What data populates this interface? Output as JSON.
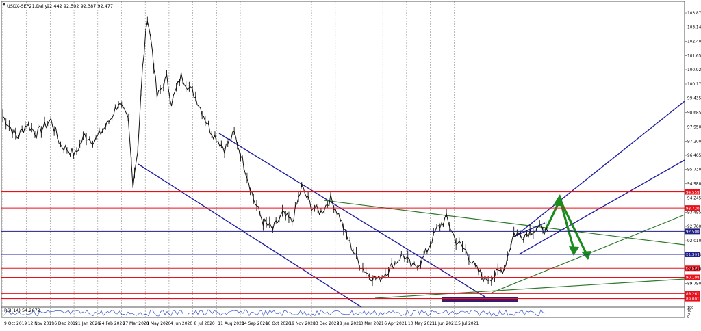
{
  "header": {
    "symbol": "USDX-SEP21,Daily",
    "ohlc": "92.442 92.502 92.387 92.477"
  },
  "rsi_label": "RSI(14) 54.2672",
  "rsi_axis": [
    "100",
    "70",
    "30",
    "0"
  ],
  "chart_data": {
    "type": "candlestick",
    "x_tick_labels": [
      "9 Oct 2019",
      "12 Nov 2019",
      "16 Dec 2019",
      "21 Jan 2020",
      "24 Feb 2020",
      "27 Mar 2020",
      "1 May 2020",
      "4 Jun 2020",
      "8 Jul 2020",
      "11 Aug 2020",
      "14 Sep 2020",
      "16 Oct 2020",
      "19 Nov 2020",
      "23 Dec 2020",
      "28 Jan 2021",
      "3 Mar 2021",
      "6 Apr 2021",
      "10 May 2021",
      "11 Jun 2021",
      "15 Jul 2021"
    ],
    "y_tick_labels": [
      "103.875",
      "103.140",
      "102.405",
      "101.655",
      "100.920",
      "100.170",
      "99.435",
      "98.685",
      "97.950",
      "97.200",
      "96.465",
      "95.730",
      "94.980",
      "94.245",
      "93.495",
      "92.760",
      "92.010",
      "91.275",
      "90.540",
      "89.790"
    ],
    "ylim": [
      88.8,
      104.5
    ],
    "price_path": [
      [
        0,
        98.5
      ],
      [
        3,
        97.4
      ],
      [
        5,
        98.1
      ],
      [
        7,
        97.6
      ],
      [
        10,
        98.3
      ],
      [
        12,
        97.0
      ],
      [
        15,
        96.5
      ],
      [
        17,
        97.5
      ],
      [
        19,
        97.2
      ],
      [
        22,
        98.2
      ],
      [
        24,
        99.2
      ],
      [
        26,
        98.3
      ],
      [
        27,
        95.0
      ],
      [
        28,
        96.8
      ],
      [
        29,
        101.0
      ],
      [
        30,
        103.7
      ],
      [
        31,
        102.0
      ],
      [
        32,
        99.5
      ],
      [
        34,
        100.5
      ],
      [
        35,
        99.2
      ],
      [
        37,
        100.6
      ],
      [
        40,
        99.5
      ],
      [
        43,
        97.8
      ],
      [
        46,
        96.8
      ],
      [
        48,
        97.6
      ],
      [
        50,
        96.0
      ],
      [
        52,
        94.2
      ],
      [
        54,
        93.0
      ],
      [
        56,
        92.6
      ],
      [
        58,
        93.4
      ],
      [
        60,
        93.0
      ],
      [
        62,
        94.8
      ],
      [
        64,
        93.8
      ],
      [
        66,
        93.5
      ],
      [
        68,
        94.2
      ],
      [
        70,
        93.2
      ],
      [
        71,
        92.4
      ],
      [
        74,
        90.8
      ],
      [
        76,
        90.2
      ],
      [
        78,
        90.0
      ],
      [
        80,
        90.5
      ],
      [
        83,
        91.3
      ],
      [
        85,
        90.6
      ],
      [
        87,
        91.0
      ],
      [
        90,
        92.6
      ],
      [
        92,
        93.2
      ],
      [
        94,
        92.0
      ],
      [
        96,
        91.5
      ],
      [
        98,
        90.6
      ],
      [
        100,
        90.0
      ],
      [
        102,
        90.2
      ],
      [
        104,
        90.6
      ],
      [
        106,
        92.4
      ],
      [
        108,
        92.3
      ],
      [
        110,
        92.6
      ],
      [
        112,
        92.7
      ],
      [
        113,
        92.477
      ]
    ],
    "horizontal_levels": [
      {
        "value": 94.559,
        "label": "94.559",
        "color": "#e8101a"
      },
      {
        "value": 93.72,
        "label": "93.720",
        "color": "#e8101a"
      },
      {
        "value": 92.5,
        "label": "92.500",
        "color": "#202080"
      },
      {
        "value": 91.303,
        "label": "91.303",
        "color": "#2020a0"
      },
      {
        "value": 90.581,
        "label": "90.581",
        "color": "#e8101a"
      },
      {
        "value": 90.108,
        "label": "90.108",
        "color": "#e8101a"
      },
      {
        "value": 89.261,
        "label": "89.261",
        "color": "#e8101a"
      },
      {
        "value": 89.001,
        "label": "89.001",
        "color": "#e8101a"
      }
    ],
    "current_price_label": "92.500",
    "colors": {
      "price_line": "#111111",
      "support_resistance": "#e8101a",
      "channel": "#2020a0",
      "trendline_green": "#2c7a2c",
      "arrow_green": "#1d8a1d",
      "highlight_bar": "#3a1a6e"
    },
    "grid": true
  }
}
